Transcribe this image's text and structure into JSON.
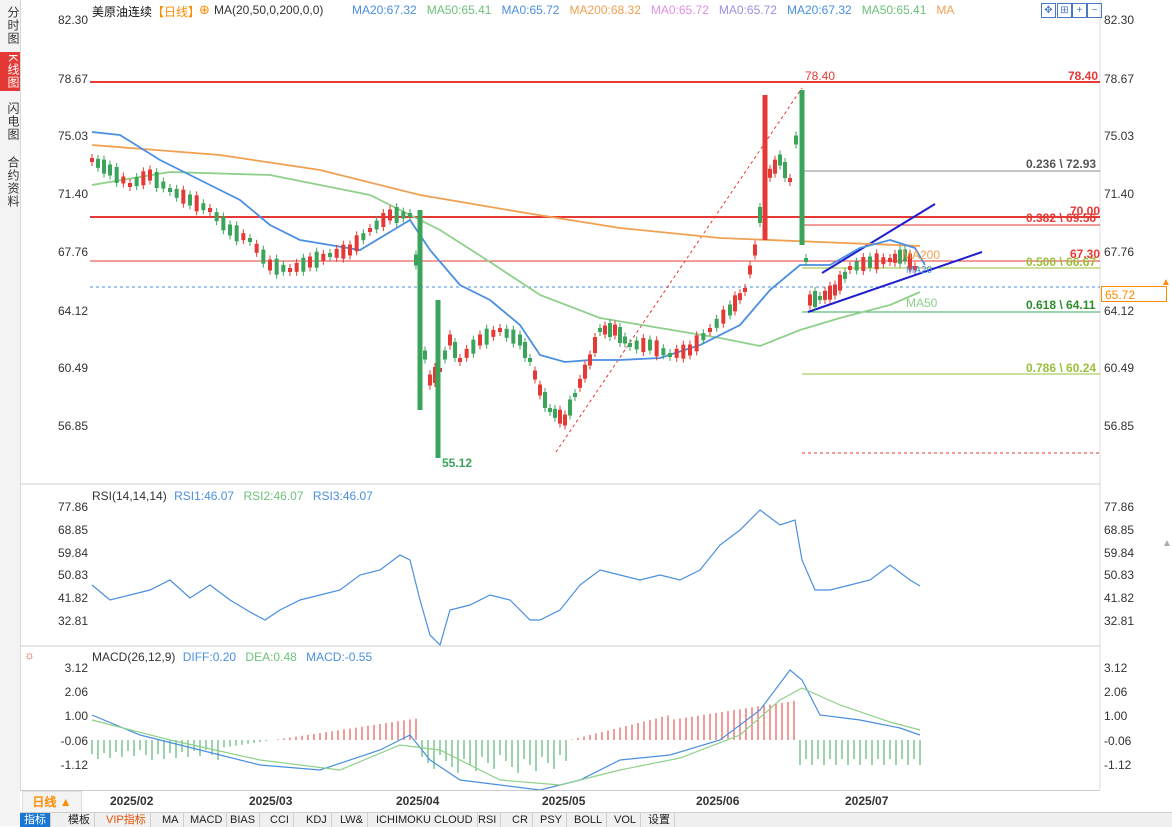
{
  "left_tabs": [
    {
      "label": "分时图",
      "active": false
    },
    {
      "label": "K线图",
      "active": true
    },
    {
      "label": "闪电图",
      "active": false
    },
    {
      "label": "合约资料",
      "active": false
    }
  ],
  "header": {
    "title": "美原油连续",
    "period": "【日线】",
    "ma_params": "MA(20,50,0,200,0,0)",
    "ma_values": [
      {
        "text": "MA20:67.32",
        "color": "#4a8fe0"
      },
      {
        "text": "MA50:65.41",
        "color": "#6cc27a"
      },
      {
        "text": "MA0:65.72",
        "color": "#4a8fe0"
      },
      {
        "text": "MA200:68.32",
        "color": "#f0a050"
      },
      {
        "text": "MA0:65.72",
        "color": "#e090e0"
      },
      {
        "text": "MA0:65.72",
        "color": "#9a8fe0"
      },
      {
        "text": "MA20:67.32",
        "color": "#4a8fe0"
      },
      {
        "text": "MA50:65.41",
        "color": "#6cc27a"
      },
      {
        "text": "MA",
        "color": "#f0a050"
      }
    ]
  },
  "toolbar_icons": [
    "move-icon",
    "split-icon",
    "zoom-in-icon",
    "zoom-out-icon",
    "expand-icon"
  ],
  "price_axis": {
    "right": [
      "82.30",
      "78.67",
      "75.03",
      "71.40",
      "67.76",
      "64.12",
      "60.49",
      "56.85"
    ],
    "left": [
      "82.30",
      "78.67",
      "75.03",
      "71.40",
      "67.76",
      "64.12",
      "60.49",
      "56.85"
    ],
    "current": "65.72"
  },
  "annotations": {
    "high": "78.40",
    "high_right": "78.40",
    "low": "55.12",
    "fib_0236": "0.236 \\ 72.93",
    "fib_0382": "0.382 \\ 69.56",
    "fib_0500": "0.500 \\ 66.67",
    "fib_0618": "0.618 \\ 64.11",
    "fib_0786": "0.786 \\ 60.24",
    "level_70": "70.00",
    "level_6730": "67.30",
    "ma200_tag": "MA200",
    "ma20_tag": "MA20",
    "ma50_tag": "MA50"
  },
  "rsi": {
    "title": "RSI(14,14,14)",
    "rsi1": "RSI1:46.07",
    "rsi2": "RSI2:46.07",
    "rsi3": "RSI3:46.07",
    "ticks": [
      "77.86",
      "68.85",
      "59.84",
      "50.83",
      "41.82",
      "32.81"
    ]
  },
  "macd": {
    "title": "MACD(26,12,9)",
    "diff": "DIFF:0.20",
    "dea": "DEA:0.48",
    "macd": "MACD:-0.55",
    "ticks": [
      "3.12",
      "2.06",
      "1.00",
      "-0.06",
      "-1.12"
    ]
  },
  "dates": [
    "2025/02",
    "2025/03",
    "2025/04",
    "2025/05",
    "2025/06",
    "2025/07"
  ],
  "bottom_tabs": [
    {
      "label": "日线 ▲",
      "style": "period"
    },
    {
      "label": "指标",
      "style": "active"
    },
    {
      "label": "模板",
      "style": ""
    },
    {
      "label": "VIP指标",
      "style": "vip"
    },
    {
      "label": "MA",
      "style": ""
    },
    {
      "label": "MACD",
      "style": ""
    },
    {
      "label": "BIAS",
      "style": ""
    },
    {
      "label": "CCI",
      "style": ""
    },
    {
      "label": "KDJ",
      "style": ""
    },
    {
      "label": "LW&",
      "style": ""
    },
    {
      "label": "ICHIMOKU CLOUD",
      "style": ""
    },
    {
      "label": "RSI",
      "style": ""
    },
    {
      "label": "CR",
      "style": ""
    },
    {
      "label": "PSY",
      "style": ""
    },
    {
      "label": "BOLL",
      "style": ""
    },
    {
      "label": "VOL",
      "style": ""
    },
    {
      "label": "设置",
      "style": ""
    }
  ],
  "colors": {
    "up": "#e53935",
    "down": "#3aa55a",
    "ma20": "#4a8fe0",
    "ma50": "#8fd08a",
    "ma200": "#f0a050",
    "accent": "#ff8c00"
  }
}
